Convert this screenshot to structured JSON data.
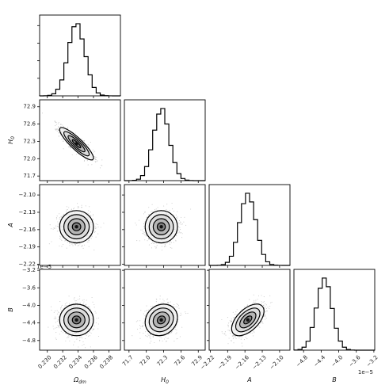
{
  "chart_data": {
    "type": "corner",
    "parameters": [
      {
        "key": "om",
        "label": "Ωdm",
        "label_main": "Ω",
        "label_sub": "dm",
        "range": [
          0.229,
          0.2395
        ],
        "ticks": [
          0.23,
          0.232,
          0.234,
          0.236,
          0.238
        ],
        "tick_labels": [
          "0.230",
          "0.232",
          "0.234",
          "0.236",
          "0.238"
        ],
        "mean": 0.2338,
        "std": 0.0011,
        "offset_label": ""
      },
      {
        "key": "h0",
        "label": "H0",
        "label_main": "H",
        "label_sub": "0",
        "range": [
          71.62,
          73.02
        ],
        "ticks": [
          71.7,
          72.0,
          72.3,
          72.6,
          72.9
        ],
        "tick_labels": [
          "71.7",
          "72.0",
          "72.3",
          "72.6",
          "72.9"
        ],
        "mean": 72.26,
        "std": 0.14,
        "offset_label": ""
      },
      {
        "key": "a",
        "label": "A",
        "label_main": "A",
        "label_sub": "",
        "range": [
          -2.222,
          -2.082
        ],
        "ticks": [
          -2.22,
          -2.19,
          -2.16,
          -2.13,
          -2.1
        ],
        "tick_labels": [
          "−2.22",
          "−2.19",
          "−2.16",
          "−2.13",
          "−2.10"
        ],
        "mean": -2.155,
        "std": 0.014,
        "offset_label": "1e−5"
      },
      {
        "key": "b",
        "label": "B",
        "label_main": "B",
        "label_sub": "",
        "range": [
          -5.02,
          -3.18
        ],
        "ticks": [
          -4.8,
          -4.4,
          -4.0,
          -3.6,
          -3.2
        ],
        "tick_labels": [
          "−4.8",
          "−4.4",
          "−4.0",
          "−3.6",
          "−3.2"
        ],
        "mean": -4.33,
        "std": 0.18,
        "offset_label": "1e−5"
      }
    ],
    "correlations": {
      "1-0": -0.88,
      "2-0": 0.0,
      "2-1": 0.0,
      "3-0": 0.0,
      "3-1": 0.15,
      "3-2": 0.55
    },
    "histogram_bins": 20,
    "contour_levels_sigma": [
      0.5,
      1.0,
      1.5,
      2.0
    ],
    "title": "",
    "colors": {
      "line": "#000000",
      "points": "#666666"
    }
  }
}
